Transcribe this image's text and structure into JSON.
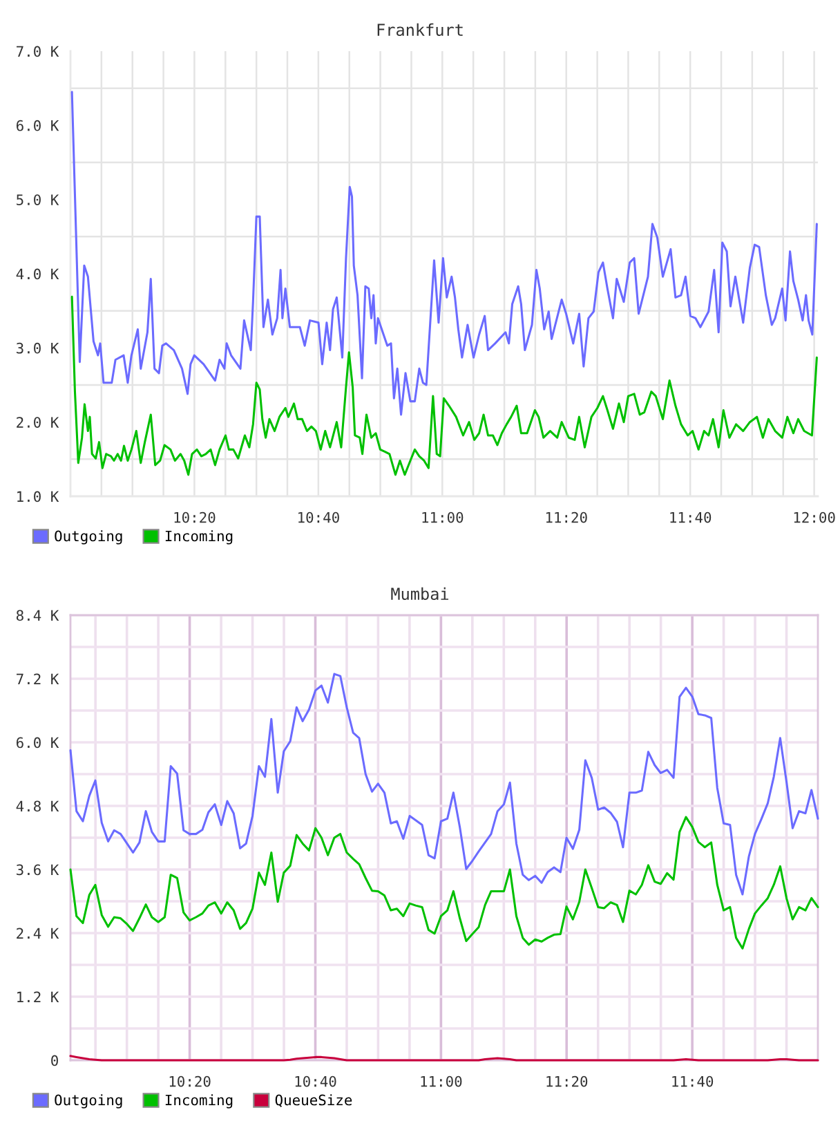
{
  "chart_data": [
    {
      "type": "line",
      "title": "Frankfurt",
      "xlim": [
        10.0,
        12.01
      ],
      "xticks": [
        {
          "value": 10.0833,
          "label": null
        },
        {
          "value": 10.1667,
          "label": null
        },
        {
          "value": 10.25,
          "label": null
        },
        {
          "value": 10.3333,
          "label": "10:20"
        },
        {
          "value": 10.4167,
          "label": null
        },
        {
          "value": 10.5,
          "label": null
        },
        {
          "value": 10.5833,
          "label": null
        },
        {
          "value": 10.6667,
          "label": "10:40"
        },
        {
          "value": 10.75,
          "label": null
        },
        {
          "value": 10.8333,
          "label": null
        },
        {
          "value": 10.9167,
          "label": null
        },
        {
          "value": 11,
          "label": "11:00"
        },
        {
          "value": 11.0833,
          "label": null
        },
        {
          "value": 11.1667,
          "label": null
        },
        {
          "value": 11.25,
          "label": null
        },
        {
          "value": 11.3333,
          "label": "11:20"
        },
        {
          "value": 11.4167,
          "label": null
        },
        {
          "value": 11.5,
          "label": null
        },
        {
          "value": 11.5833,
          "label": null
        },
        {
          "value": 11.6667,
          "label": "11:40"
        },
        {
          "value": 11.75,
          "label": null
        },
        {
          "value": 11.8333,
          "label": null
        },
        {
          "value": 11.9167,
          "label": null
        },
        {
          "value": 12,
          "label": "12:00"
        }
      ],
      "ylim": [
        1000,
        7000
      ],
      "yticks": [
        {
          "value": 1000,
          "label": "1.0 K"
        },
        {
          "value": 1500,
          "label": null
        },
        {
          "value": 2000,
          "label": "2.0 K"
        },
        {
          "value": 2500,
          "label": null
        },
        {
          "value": 3000,
          "label": "3.0 K"
        },
        {
          "value": 3500,
          "label": null
        },
        {
          "value": 4000,
          "label": "4.0 K"
        },
        {
          "value": 4500,
          "label": null
        },
        {
          "value": 5000,
          "label": "5.0 K"
        },
        {
          "value": 5500,
          "label": null
        },
        {
          "value": 6000,
          "label": "6.0 K"
        },
        {
          "value": 6500,
          "label": null
        },
        {
          "value": 7000,
          "label": "7.0 K"
        }
      ],
      "grid": true,
      "legend": "bottom left",
      "series": [
        {
          "name": "Outgoing",
          "color": "#6b6bff",
          "x": [
            10.004,
            10.025,
            10.037,
            10.047,
            10.062,
            10.074,
            10.08,
            10.089,
            10.111,
            10.121,
            10.143,
            10.154,
            10.164,
            10.181,
            10.189,
            10.207,
            10.216,
            10.226,
            10.238,
            10.247,
            10.257,
            10.278,
            10.3,
            10.315,
            10.323,
            10.333,
            10.358,
            10.389,
            10.401,
            10.414,
            10.42,
            10.432,
            10.457,
            10.467,
            10.485,
            10.491,
            10.5,
            10.509,
            10.519,
            10.531,
            10.543,
            10.556,
            10.565,
            10.57,
            10.578,
            10.59,
            10.617,
            10.63,
            10.644,
            10.667,
            10.677,
            10.689,
            10.698,
            10.706,
            10.716,
            10.731,
            10.741,
            10.751,
            10.757,
            10.762,
            10.772,
            10.784,
            10.793,
            10.802,
            10.809,
            10.815,
            10.821,
            10.827,
            10.852,
            10.862,
            10.87,
            10.879,
            10.889,
            10.901,
            10.914,
            10.926,
            10.938,
            10.948,
            10.957,
            10.978,
            10.99,
            11.002,
            11.012,
            11.025,
            11.034,
            11.043,
            11.053,
            11.068,
            11.084,
            11.099,
            11.114,
            11.123,
            11.142,
            11.17,
            11.179,
            11.188,
            11.204,
            11.212,
            11.222,
            11.241,
            11.253,
            11.262,
            11.274,
            11.286,
            11.294,
            11.321,
            11.333,
            11.352,
            11.368,
            11.38,
            11.393,
            11.407,
            11.42,
            11.432,
            11.444,
            11.459,
            11.469,
            11.488,
            11.504,
            11.516,
            11.528,
            11.553,
            11.565,
            11.578,
            11.593,
            11.614,
            11.627,
            11.642,
            11.654,
            11.667,
            11.681,
            11.694,
            11.716,
            11.731,
            11.743,
            11.753,
            11.765,
            11.775,
            11.788,
            11.809,
            11.827,
            11.84,
            11.852,
            11.87,
            11.886,
            11.895,
            11.914,
            11.923,
            11.935,
            11.944,
            11.957,
            11.969,
            11.978,
            11.985,
            11.995,
            12.007
          ],
          "values": [
            6450,
            2810,
            4110,
            3960,
            3090,
            2900,
            3060,
            2530,
            2530,
            2840,
            2900,
            2530,
            2900,
            3250,
            2720,
            3210,
            3930,
            2720,
            2660,
            3030,
            3060,
            2970,
            2720,
            2380,
            2780,
            2900,
            2780,
            2560,
            2840,
            2720,
            3060,
            2900,
            2720,
            3370,
            2970,
            3620,
            4770,
            4770,
            3280,
            3650,
            3180,
            3400,
            4050,
            3400,
            3800,
            3280,
            3280,
            3030,
            3370,
            3340,
            2780,
            3340,
            2970,
            3520,
            3680,
            2870,
            4210,
            5170,
            5040,
            4110,
            3710,
            2590,
            3830,
            3800,
            3400,
            3710,
            3060,
            3400,
            3030,
            3060,
            2320,
            2720,
            2100,
            2660,
            2280,
            2280,
            2720,
            2530,
            2500,
            4180,
            3340,
            4210,
            3680,
            3960,
            3680,
            3250,
            2870,
            3310,
            2870,
            3180,
            3430,
            2970,
            3060,
            3210,
            3060,
            3590,
            3830,
            3590,
            2970,
            3310,
            4050,
            3800,
            3250,
            3490,
            3120,
            3650,
            3460,
            3060,
            3460,
            2750,
            3400,
            3490,
            4020,
            4150,
            3800,
            3400,
            3930,
            3620,
            4150,
            4210,
            3460,
            3960,
            4670,
            4490,
            3960,
            4330,
            3680,
            3710,
            3960,
            3430,
            3400,
            3280,
            3490,
            4050,
            3210,
            4420,
            4300,
            3560,
            3960,
            3340,
            4080,
            4390,
            4360,
            3710,
            3310,
            3400,
            3800,
            3370,
            4300,
            3900,
            3650,
            3370,
            3710,
            3370,
            3180,
            4670
          ]
        },
        {
          "name": "Incoming",
          "color": "#00c000",
          "x": [
            10.004,
            10.012,
            10.021,
            10.031,
            10.038,
            10.047,
            10.052,
            10.058,
            10.068,
            10.077,
            10.086,
            10.096,
            10.109,
            10.117,
            10.127,
            10.136,
            10.144,
            10.154,
            10.164,
            10.177,
            10.189,
            10.2,
            10.216,
            10.228,
            10.241,
            10.253,
            10.269,
            10.281,
            10.296,
            10.306,
            10.317,
            10.327,
            10.34,
            10.352,
            10.364,
            10.377,
            10.389,
            10.401,
            10.417,
            10.426,
            10.438,
            10.451,
            10.469,
            10.481,
            10.491,
            10.5,
            10.509,
            10.516,
            10.525,
            10.535,
            10.549,
            10.562,
            10.578,
            10.586,
            10.601,
            10.611,
            10.623,
            10.636,
            10.648,
            10.66,
            10.673,
            10.685,
            10.698,
            10.716,
            10.728,
            10.741,
            10.749,
            10.759,
            10.765,
            10.778,
            10.785,
            10.796,
            10.809,
            10.821,
            10.833,
            10.846,
            10.858,
            10.874,
            10.886,
            10.899,
            10.914,
            10.926,
            10.938,
            10.951,
            10.963,
            10.975,
            10.985,
            10.994,
            11.004,
            11.018,
            11.037,
            11.056,
            11.072,
            11.086,
            11.099,
            11.111,
            11.123,
            11.136,
            11.148,
            11.16,
            11.173,
            11.185,
            11.2,
            11.212,
            11.228,
            11.249,
            11.259,
            11.272,
            11.29,
            11.309,
            11.321,
            11.34,
            11.356,
            11.368,
            11.383,
            11.401,
            11.417,
            11.432,
            11.444,
            11.459,
            11.475,
            11.488,
            11.5,
            11.516,
            11.531,
            11.543,
            11.562,
            11.574,
            11.593,
            11.611,
            11.627,
            11.642,
            11.66,
            11.673,
            11.689,
            11.704,
            11.716,
            11.728,
            11.743,
            11.756,
            11.772,
            11.79,
            11.809,
            11.827,
            11.846,
            11.862,
            11.877,
            11.895,
            11.914,
            11.928,
            11.944,
            11.957,
            11.973,
            11.994,
            12.007
          ],
          "values": [
            3690,
            2410,
            1450,
            1790,
            2240,
            1880,
            2070,
            1570,
            1510,
            1730,
            1380,
            1570,
            1540,
            1480,
            1570,
            1480,
            1680,
            1480,
            1630,
            1880,
            1450,
            1730,
            2100,
            1420,
            1480,
            1690,
            1630,
            1480,
            1570,
            1480,
            1290,
            1570,
            1630,
            1540,
            1570,
            1630,
            1420,
            1630,
            1820,
            1630,
            1630,
            1510,
            1820,
            1660,
            1970,
            2530,
            2440,
            2040,
            1790,
            2040,
            1880,
            2070,
            2190,
            2070,
            2250,
            2040,
            2040,
            1880,
            1940,
            1880,
            1630,
            1880,
            1660,
            2000,
            1660,
            2470,
            2940,
            2470,
            1820,
            1790,
            1570,
            2100,
            1790,
            1850,
            1630,
            1600,
            1570,
            1290,
            1480,
            1290,
            1480,
            1630,
            1540,
            1480,
            1380,
            2350,
            1570,
            1540,
            2320,
            2220,
            2070,
            1820,
            2000,
            1760,
            1850,
            2100,
            1820,
            1820,
            1690,
            1850,
            1970,
            2070,
            2220,
            1850,
            1850,
            2160,
            2070,
            1790,
            1880,
            1790,
            2000,
            1790,
            1760,
            2070,
            1660,
            2070,
            2190,
            2350,
            2160,
            1910,
            2250,
            2000,
            2350,
            2380,
            2100,
            2130,
            2410,
            2350,
            2040,
            2560,
            2220,
            1970,
            1820,
            1880,
            1630,
            1880,
            1820,
            2040,
            1660,
            2160,
            1790,
            1970,
            1880,
            2000,
            2070,
            1790,
            2040,
            1880,
            1790,
            2070,
            1850,
            2040,
            1880,
            1820,
            2870
          ]
        }
      ]
    },
    {
      "type": "line",
      "title": "Mumbai",
      "x": [
        10.017,
        10.033,
        10.05,
        10.067,
        10.083,
        10.1,
        10.117,
        10.133,
        10.15,
        10.167,
        10.183,
        10.2,
        10.217,
        10.233,
        10.25,
        10.267,
        10.283,
        10.3,
        10.317,
        10.333,
        10.35,
        10.367,
        10.383,
        10.4,
        10.417,
        10.433,
        10.45,
        10.467,
        10.483,
        10.5,
        10.517,
        10.533,
        10.55,
        10.567,
        10.583,
        10.6,
        10.617,
        10.633,
        10.65,
        10.667,
        10.683,
        10.7,
        10.717,
        10.733,
        10.75,
        10.767,
        10.783,
        10.8,
        10.817,
        10.833,
        10.85,
        10.867,
        10.883,
        10.9,
        10.917,
        10.933,
        10.95,
        10.967,
        10.983,
        11,
        11.017,
        11.033,
        11.05,
        11.067,
        11.083,
        11.1,
        11.117,
        11.133,
        11.15,
        11.167,
        11.183,
        11.2,
        11.217,
        11.233,
        11.25,
        11.267,
        11.283,
        11.3,
        11.317,
        11.333,
        11.35,
        11.367,
        11.383,
        11.4,
        11.417,
        11.433,
        11.45,
        11.467,
        11.483,
        11.5,
        11.517,
        11.533,
        11.55,
        11.567,
        11.583,
        11.6,
        11.617,
        11.633,
        11.65,
        11.667,
        11.683,
        11.7,
        11.717,
        11.733,
        11.75,
        11.767,
        11.783,
        11.8,
        11.817,
        11.833,
        11.85,
        11.867,
        11.883,
        11.9,
        11.917,
        11.933,
        11.95,
        11.967,
        11.983,
        12
      ],
      "xlim": [
        10.017,
        12
      ],
      "xticks": [
        {
          "value": 10.0833,
          "label": null
        },
        {
          "value": 10.1667,
          "label": null
        },
        {
          "value": 10.25,
          "label": null
        },
        {
          "value": 10.3333,
          "label": "10:20"
        },
        {
          "value": 10.4167,
          "label": null
        },
        {
          "value": 10.5,
          "label": null
        },
        {
          "value": 10.5833,
          "label": null
        },
        {
          "value": 10.6667,
          "label": "10:40"
        },
        {
          "value": 10.75,
          "label": null
        },
        {
          "value": 10.8333,
          "label": null
        },
        {
          "value": 10.9167,
          "label": null
        },
        {
          "value": 11,
          "label": "11:00"
        },
        {
          "value": 11.0833,
          "label": null
        },
        {
          "value": 11.1667,
          "label": null
        },
        {
          "value": 11.25,
          "label": null
        },
        {
          "value": 11.3333,
          "label": "11:20"
        },
        {
          "value": 11.4167,
          "label": null
        },
        {
          "value": 11.5,
          "label": null
        },
        {
          "value": 11.5833,
          "label": null
        },
        {
          "value": 11.6667,
          "label": "11:40"
        },
        {
          "value": 11.75,
          "label": null
        },
        {
          "value": 11.8333,
          "label": null
        },
        {
          "value": 11.9167,
          "label": null
        }
      ],
      "ylim": [
        0,
        8400
      ],
      "yticks": [
        0,
        {
          "value": 600,
          "label": null
        },
        {
          "value": 1200,
          "label": "1.2 K"
        },
        {
          "value": 1800,
          "label": null
        },
        {
          "value": 2400,
          "label": "2.4 K"
        },
        {
          "value": 3000,
          "label": null
        },
        {
          "value": 3600,
          "label": "3.6 K"
        },
        {
          "value": 4200,
          "label": null
        },
        {
          "value": 4800,
          "label": "4.8 K"
        },
        {
          "value": 5400,
          "label": null
        },
        {
          "value": 6000,
          "label": "6.0 K"
        },
        {
          "value": 6600,
          "label": null
        },
        {
          "value": 7200,
          "label": "7.2 K"
        },
        {
          "value": 7800,
          "label": null
        },
        {
          "value": 8400,
          "label": "8.4 K"
        }
      ],
      "grid": true,
      "legend": "bottom left",
      "series": [
        {
          "name": "Outgoing",
          "color": "#6b6bff",
          "values": [
            5850,
            4700,
            4510,
            4990,
            5280,
            4480,
            4130,
            4340,
            4270,
            4090,
            3920,
            4110,
            4700,
            4310,
            4130,
            4130,
            5550,
            5410,
            4340,
            4270,
            4270,
            4350,
            4680,
            4830,
            4440,
            4890,
            4660,
            4000,
            4090,
            4610,
            5550,
            5350,
            6440,
            5050,
            5830,
            6020,
            6660,
            6400,
            6620,
            6980,
            7070,
            6750,
            7290,
            7250,
            6660,
            6180,
            6080,
            5400,
            5070,
            5220,
            5050,
            4470,
            4510,
            4180,
            4610,
            4530,
            4440,
            3870,
            3810,
            4510,
            4560,
            5050,
            4400,
            3610,
            3760,
            3940,
            4110,
            4270,
            4700,
            4830,
            5240,
            4090,
            3500,
            3400,
            3480,
            3350,
            3550,
            3640,
            3550,
            4200,
            3990,
            4350,
            5660,
            5330,
            4730,
            4770,
            4670,
            4500,
            4020,
            5050,
            5050,
            5090,
            5820,
            5570,
            5420,
            5480,
            5330,
            6860,
            7030,
            6860,
            6530,
            6510,
            6460,
            5140,
            4470,
            4440,
            3500,
            3130,
            3850,
            4270,
            4550,
            4850,
            5350,
            6080,
            5240,
            4380,
            4700,
            4660,
            5100,
            4560
          ]
        },
        {
          "name": "Incoming",
          "color": "#00c000",
          "values": [
            3600,
            2720,
            2590,
            3120,
            3310,
            2740,
            2520,
            2700,
            2680,
            2570,
            2440,
            2680,
            2940,
            2700,
            2610,
            2700,
            3500,
            3440,
            2790,
            2640,
            2700,
            2770,
            2920,
            2980,
            2770,
            2980,
            2830,
            2480,
            2590,
            2860,
            3540,
            3310,
            3920,
            2990,
            3540,
            3670,
            4250,
            4090,
            3960,
            4380,
            4200,
            3870,
            4200,
            4270,
            3920,
            3800,
            3700,
            3440,
            3200,
            3190,
            3110,
            2830,
            2860,
            2720,
            2960,
            2920,
            2890,
            2460,
            2390,
            2720,
            2830,
            3190,
            2680,
            2250,
            2380,
            2510,
            2930,
            3190,
            3190,
            3190,
            3600,
            2720,
            2310,
            2180,
            2280,
            2240,
            2310,
            2370,
            2380,
            2900,
            2660,
            2990,
            3600,
            3250,
            2890,
            2870,
            2980,
            2930,
            2610,
            3200,
            3130,
            3310,
            3680,
            3370,
            3330,
            3530,
            3410,
            4310,
            4590,
            4400,
            4120,
            4020,
            4110,
            3310,
            2830,
            2890,
            2310,
            2110,
            2480,
            2770,
            2920,
            3060,
            3310,
            3660,
            3050,
            2660,
            2890,
            2830,
            3060,
            2890
          ]
        },
        {
          "name": "QueueSize",
          "color": "#c8003c",
          "values": [
            80,
            60,
            40,
            20,
            10,
            0,
            0,
            0,
            0,
            0,
            0,
            0,
            0,
            0,
            0,
            0,
            0,
            0,
            0,
            0,
            0,
            0,
            0,
            0,
            0,
            0,
            0,
            0,
            0,
            0,
            0,
            0,
            0,
            0,
            0,
            10,
            30,
            40,
            50,
            60,
            60,
            50,
            40,
            20,
            0,
            0,
            0,
            0,
            0,
            0,
            0,
            0,
            0,
            0,
            0,
            0,
            0,
            0,
            0,
            0,
            0,
            0,
            0,
            0,
            0,
            0,
            20,
            30,
            40,
            30,
            20,
            0,
            0,
            0,
            0,
            0,
            0,
            0,
            0,
            0,
            0,
            0,
            0,
            0,
            0,
            0,
            0,
            0,
            0,
            0,
            0,
            0,
            0,
            0,
            0,
            0,
            0,
            10,
            20,
            10,
            0,
            0,
            0,
            0,
            0,
            0,
            0,
            0,
            0,
            0,
            0,
            0,
            10,
            20,
            20,
            10,
            0,
            0,
            0,
            0
          ]
        }
      ]
    }
  ]
}
